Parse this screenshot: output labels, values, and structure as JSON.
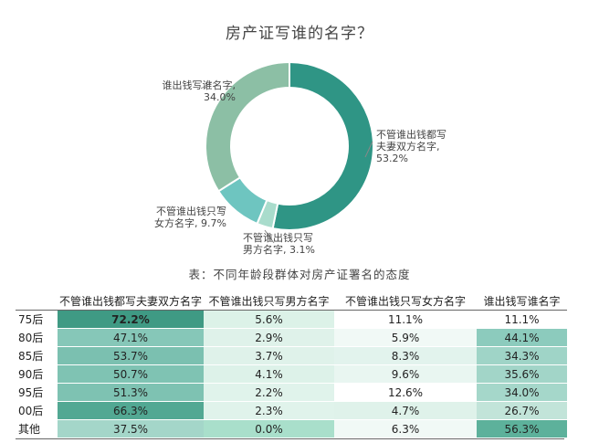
{
  "chart_data": [
    {
      "type": "pie",
      "title": "房产证写谁的名字？",
      "slices": [
        {
          "label": "不管谁出钱都写夫妻双方名字",
          "value": 53.2,
          "display": "不管谁出钱都写\n夫妻双方名字,\n53.2%",
          "color": "#2f9585"
        },
        {
          "label": "不管谁出钱只写男方名字",
          "value": 3.1,
          "display": "不管谁出钱只写\n男方名字, 3.1%",
          "color": "#a9dccc"
        },
        {
          "label": "不管谁出钱只写女方名字",
          "value": 9.7,
          "display": "不管谁出钱只写\n女方名字, 9.7%",
          "color": "#6ec5c0"
        },
        {
          "label": "谁出钱写谁名字",
          "value": 34.0,
          "display": "谁出钱写谁名字,\n34.0%",
          "color": "#8cbfa5"
        }
      ]
    },
    {
      "type": "table",
      "caption": "表：不同年龄段群体对房产证署名的态度",
      "columns": [
        "",
        "不管谁出钱都写夫妻双方名字",
        "不管谁出钱只写男方名字",
        "不管谁出钱只写女方名字",
        "谁出钱写谁名字"
      ],
      "rows": [
        {
          "label": "75后",
          "values": [
            "72.2%",
            "5.6%",
            "11.1%",
            "11.1%"
          ],
          "colors": [
            "#3f9a84",
            "#dcf2e8",
            "#ffffff",
            "#ffffff"
          ]
        },
        {
          "label": "80后",
          "values": [
            "47.1%",
            "2.9%",
            "5.9%",
            "44.1%"
          ],
          "colors": [
            "#86c7b8",
            "#dff2ea",
            "#f1f9f6",
            "#8ccbbd"
          ]
        },
        {
          "label": "85后",
          "values": [
            "53.7%",
            "3.7%",
            "8.3%",
            "34.3%"
          ],
          "colors": [
            "#7bc0b0",
            "#dff2ea",
            "#e2f3ed",
            "#9fd4c7"
          ]
        },
        {
          "label": "90后",
          "values": [
            "50.7%",
            "4.1%",
            "9.6%",
            "35.6%"
          ],
          "colors": [
            "#7fc3b3",
            "#ddf2e9",
            "#e9f6f1",
            "#a2d5c8"
          ]
        },
        {
          "label": "95后",
          "values": [
            "51.3%",
            "2.2%",
            "12.6%",
            "34.0%"
          ],
          "colors": [
            "#7ec2b2",
            "#e0f3eb",
            "#ffffff",
            "#a5d7ca"
          ]
        },
        {
          "label": "00后",
          "values": [
            "66.3%",
            "2.3%",
            "4.7%",
            "26.7%"
          ],
          "colors": [
            "#52a893",
            "#e0f3eb",
            "#dff2ea",
            "#c2e4d9"
          ]
        },
        {
          "label": "其他",
          "values": [
            "37.5%",
            "0.0%",
            "6.3%",
            "56.3%"
          ],
          "colors": [
            "#a4d6c9",
            "#a9dfcb",
            "#f1f9f6",
            "#5db19b"
          ]
        }
      ]
    }
  ]
}
